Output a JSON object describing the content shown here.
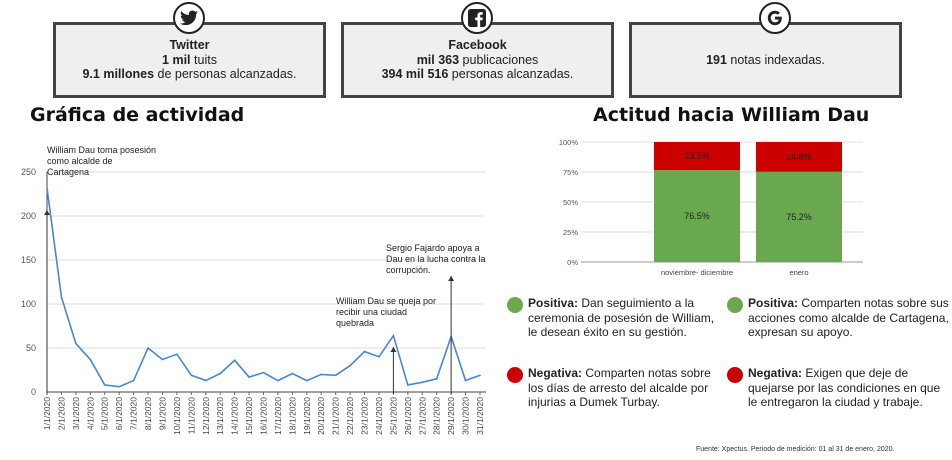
{
  "cards": {
    "twitter": {
      "icon": "twitter-icon",
      "title": "Twitter",
      "line1_b": "1 mil",
      "line1": " tuits",
      "line2_b": "9.1 millones",
      "line2": " de personas alcanzadas."
    },
    "facebook": {
      "icon": "facebook-icon",
      "title": "Facebook",
      "line1_b": "mil 363",
      "line1": " publicaciones",
      "line2_b": "394 mil 516",
      "line2": " personas alcanzadas."
    },
    "google": {
      "icon": "google-icon",
      "line1_b": "191",
      "line1": " notas indexadas."
    }
  },
  "titles": {
    "activity": "Gráfica de actividad",
    "attitude": "Actitud hacia William Dau"
  },
  "annotations": {
    "a1": "William Dau toma posesión como alcalde de Cartagena",
    "a2": "William Dau se queja por recibir una ciudad quebrada",
    "a3": "Sergio Fajardo apoya a Dau en la lucha contra la corrupción."
  },
  "chart_data": [
    {
      "type": "line",
      "x": [
        "1/1/2020",
        "2/1/2020",
        "3/1/2020",
        "4/1/2020",
        "5/1/2020",
        "6/1/2020",
        "7/1/2020",
        "8/1/2020",
        "9/1/2020",
        "10/1/2020",
        "11/1/2020",
        "12/1/2020",
        "13/1/2020",
        "14/1/2020",
        "15/1/2020",
        "16/1/2020",
        "17/1/2020",
        "18/1/2020",
        "19/1/2020",
        "20/1/2020",
        "21/1/2020",
        "22/1/2020",
        "23/1/2020",
        "24/1/2020",
        "25/1/2020",
        "26/1/2020",
        "27/1/2020",
        "28/1/2020",
        "29/1/2020",
        "30/1/2020",
        "31/1/2020"
      ],
      "x_ticks": [
        "1/1/2020",
        "2/1/2020",
        "3/1/2020",
        "4/1/2020",
        "5/1/2020",
        "6/1/2020",
        "7/1/2020",
        "8/1/2020",
        "9/1/2020",
        "10/1/2020",
        "11/1/2020",
        "12/1/2020",
        "13/1/2020",
        "14/1/2020",
        "15/1/2020",
        "16/1/2020",
        "17/1/2020",
        "18/1/2020",
        "19/1/2020",
        "20/1/2020",
        "21/1/2020",
        "22/1/2020",
        "23/1/2020",
        "24/1/2020",
        "25/1/2020",
        "26/1/2020",
        "27/1/2020",
        "28/1/2020",
        "29/1/2020",
        "30/1/2020",
        "31/1/2020"
      ],
      "values": [
        232,
        108,
        55,
        37,
        8,
        6,
        13,
        50,
        37,
        43,
        19,
        13,
        21,
        36,
        17,
        22,
        13,
        21,
        13,
        20,
        19,
        30,
        46,
        40,
        64,
        8,
        11,
        15,
        63,
        13,
        19
      ],
      "yticks": [
        0,
        50,
        100,
        150,
        200,
        250
      ],
      "ylim": [
        0,
        250
      ],
      "grid": true,
      "color": "#4a86d4"
    },
    {
      "type": "bar",
      "stacked": true,
      "categories": [
        "noviembre- diciembre",
        "enero"
      ],
      "series": [
        {
          "values": [
            76.5,
            75.2
          ],
          "labels": [
            "76.5%",
            "75.2%"
          ],
          "color": "#6aa84f"
        },
        {
          "values": [
            23.5,
            24.8
          ],
          "labels": [
            "23.5%",
            "24.8%"
          ],
          "color": "#cc0000"
        }
      ],
      "yticks": [
        "0%",
        "25%",
        "50%",
        "75%",
        "100%"
      ],
      "ylim": [
        0,
        100
      ],
      "grid": true
    }
  ],
  "legend": {
    "left_pos": {
      "bold": "Positiva:",
      "text": " Dan seguimiento a la ceremonia de posesión de William, le desean éxito en su gestión.",
      "color": "#6aa84f"
    },
    "left_neg": {
      "bold": "Negativa:",
      "text": " Comparten notas sobre los días de arresto del alcalde por injurias a Dumek Turbay.",
      "color": "#cc0000"
    },
    "right_pos": {
      "bold": "Positiva:",
      "text": "  Comparten notas sobre sus acciones como alcalde de Cartagena, expresan su apoyo.",
      "color": "#6aa84f"
    },
    "right_neg": {
      "bold": "Negativa:",
      "text": " Exigen que deje de quejarse por las condiciones en que le entregaron la ciudad y trabaje.",
      "color": "#cc0000"
    }
  },
  "source": "Fuente: Xpectus. Periodo de medición:  01 al 31 de enero, 2020."
}
